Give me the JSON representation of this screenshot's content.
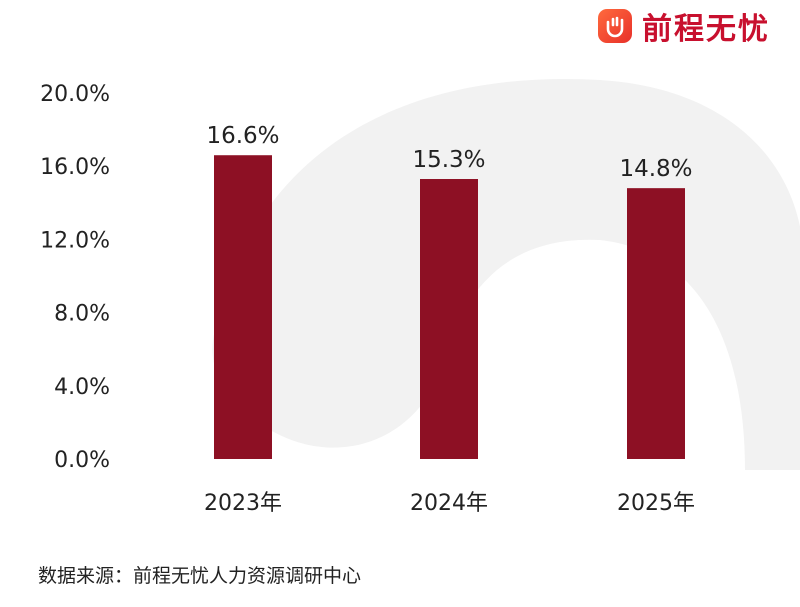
{
  "brand": {
    "name": "前程无忧",
    "accent": "#c8102e",
    "icon": "hand-logo-icon"
  },
  "source_note": "数据来源：前程无忧人力资源调研中心",
  "colors": {
    "bar": "#8d1024",
    "background_shape": "#f2f2f2"
  },
  "chart_data": {
    "type": "bar",
    "categories": [
      "2023年",
      "2024年",
      "2025年"
    ],
    "values": [
      16.6,
      15.3,
      14.8
    ],
    "value_labels": [
      "16.6%",
      "15.3%",
      "14.8%"
    ],
    "yticks": [
      "0.0%",
      "4.0%",
      "8.0%",
      "12.0%",
      "16.0%",
      "20.0%"
    ],
    "ytick_values": [
      0,
      4,
      8,
      12,
      16,
      20
    ],
    "ylim": [
      0,
      20
    ],
    "title": "",
    "xlabel": "",
    "ylabel": "",
    "grid": false
  }
}
